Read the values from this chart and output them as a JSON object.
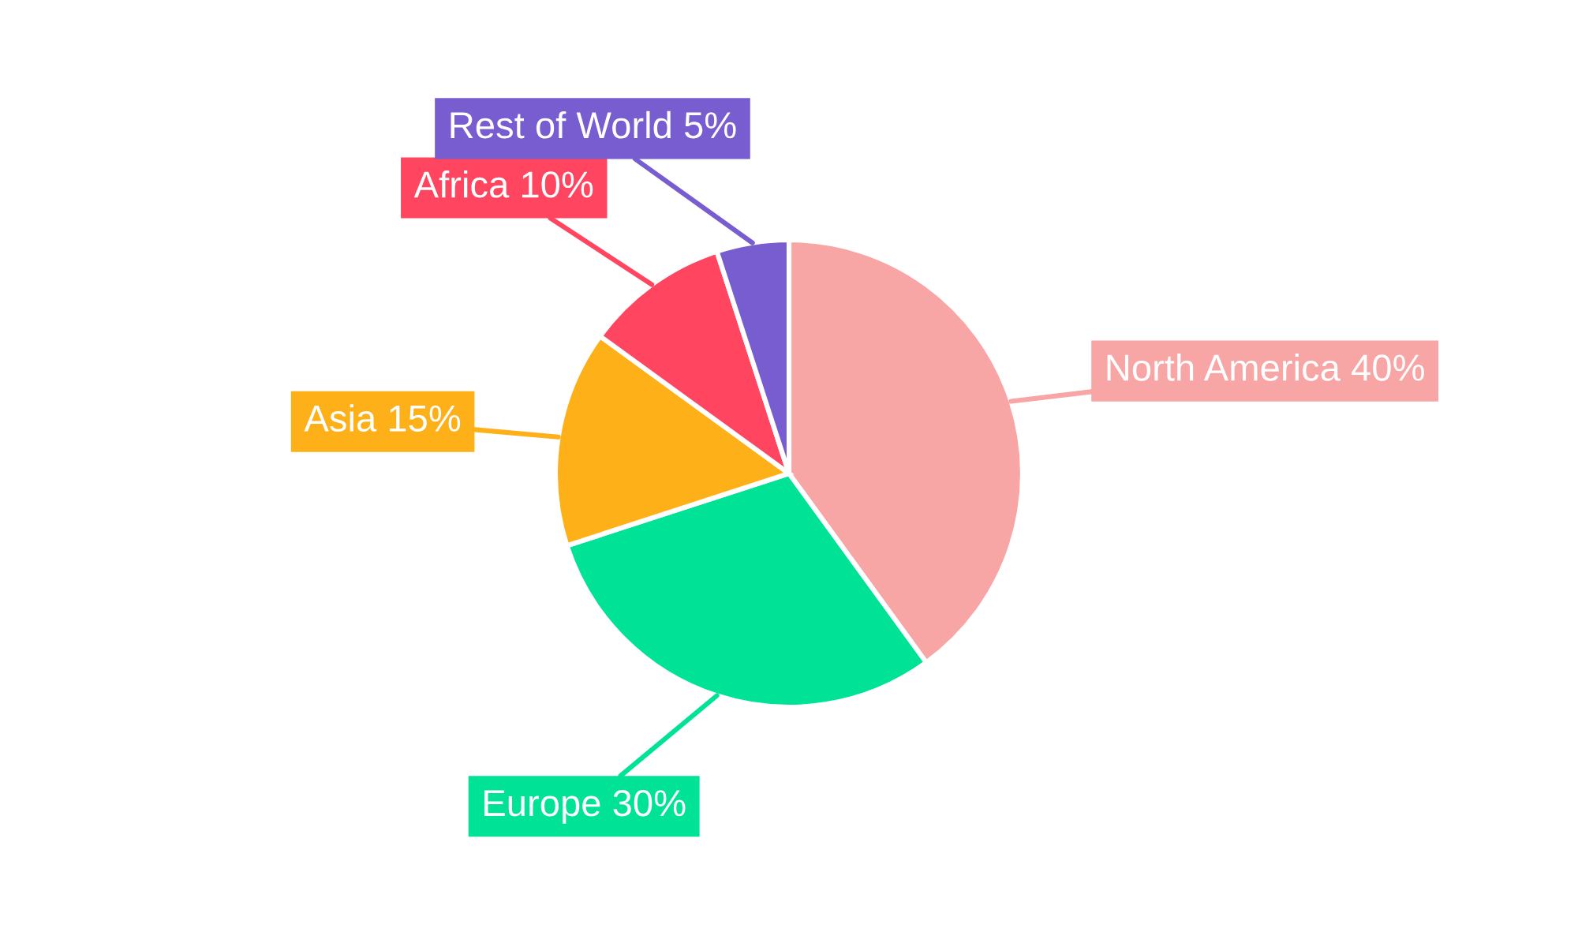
{
  "chart_data": {
    "type": "pie",
    "categories": [
      "North America",
      "Europe",
      "Asia",
      "Africa",
      "Rest of World"
    ],
    "values": [
      40,
      30,
      15,
      10,
      5
    ],
    "value_labels": [
      "40%",
      "30%",
      "15%",
      "10%",
      "5%"
    ],
    "colors": [
      "#f8a5a6",
      "#00e396",
      "#feb019",
      "#ff4560",
      "#775dd0"
    ],
    "legend": false
  }
}
